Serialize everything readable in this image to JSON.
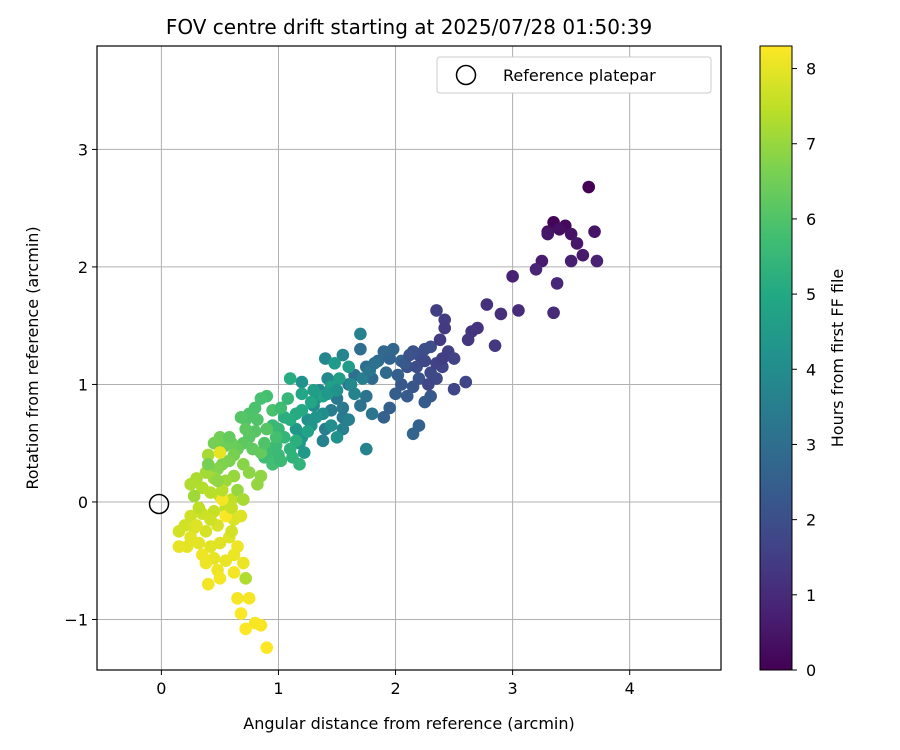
{
  "chart_data": {
    "type": "scatter",
    "title": "FOV centre drift starting at 2025/07/28 01:50:39",
    "xlabel": "Angular distance from reference (arcmin)",
    "ylabel": "Rotation from reference (arcmin)",
    "xlim": [
      -0.55,
      4.78
    ],
    "ylim": [
      -1.43,
      3.88
    ],
    "xticks": [
      0,
      1,
      2,
      3,
      4
    ],
    "yticks": [
      -1,
      0,
      1,
      2,
      3
    ],
    "xtick_labels": [
      "0",
      "1",
      "2",
      "3",
      "4"
    ],
    "ytick_labels": [
      "−1",
      "0",
      "1",
      "2",
      "3"
    ],
    "grid": true,
    "colormap": "viridis",
    "colorbar": {
      "label": "Hours from first FF file",
      "range": [
        0,
        8.3
      ],
      "ticks": [
        0,
        1,
        2,
        3,
        4,
        5,
        6,
        7,
        8
      ],
      "tick_labels": [
        "0",
        "1",
        "2",
        "3",
        "4",
        "5",
        "6",
        "7",
        "8"
      ]
    },
    "legend": {
      "position": "top-right",
      "entries": [
        "Reference platepar"
      ]
    },
    "reference_point": {
      "x": 0,
      "y": 0,
      "marker": "open-circle"
    },
    "series": [
      {
        "points": [
          [
            3.65,
            2.68,
            0.0
          ],
          [
            3.35,
            2.38,
            0.1
          ],
          [
            3.45,
            2.35,
            0.2
          ],
          [
            3.3,
            2.3,
            0.3
          ],
          [
            3.4,
            2.32,
            0.35
          ],
          [
            3.5,
            2.28,
            0.4
          ],
          [
            3.7,
            2.3,
            0.45
          ],
          [
            3.3,
            2.28,
            0.5
          ],
          [
            3.55,
            2.2,
            0.55
          ],
          [
            3.6,
            2.1,
            0.6
          ],
          [
            3.25,
            2.05,
            0.65
          ],
          [
            3.5,
            2.05,
            0.7
          ],
          [
            3.72,
            2.05,
            0.75
          ],
          [
            3.0,
            1.92,
            0.8
          ],
          [
            3.2,
            1.98,
            0.85
          ],
          [
            3.38,
            1.86,
            0.9
          ],
          [
            3.35,
            1.61,
            1.0
          ],
          [
            3.05,
            1.63,
            1.05
          ],
          [
            2.9,
            1.6,
            1.1
          ],
          [
            2.78,
            1.68,
            1.15
          ],
          [
            2.7,
            1.48,
            1.2
          ],
          [
            2.65,
            1.45,
            1.25
          ],
          [
            2.62,
            1.38,
            1.3
          ],
          [
            2.85,
            1.33,
            1.35
          ],
          [
            2.42,
            1.48,
            1.4
          ],
          [
            2.42,
            1.55,
            1.45
          ],
          [
            2.35,
            1.63,
            1.5
          ],
          [
            2.45,
            1.28,
            1.55
          ],
          [
            2.5,
            1.22,
            1.6
          ],
          [
            2.4,
            1.15,
            1.65
          ],
          [
            2.6,
            1.02,
            1.7
          ],
          [
            2.5,
            0.96,
            1.75
          ],
          [
            2.35,
            1.05,
            1.8
          ],
          [
            2.3,
            1.1,
            1.85
          ],
          [
            2.2,
            1.25,
            1.9
          ],
          [
            2.25,
            1.3,
            1.95
          ],
          [
            2.3,
            1.32,
            2.0
          ],
          [
            2.15,
            1.28,
            2.05
          ],
          [
            2.1,
            1.15,
            2.1
          ],
          [
            2.2,
            1.05,
            2.15
          ],
          [
            2.15,
            0.98,
            2.2
          ],
          [
            2.05,
            1.0,
            2.25
          ],
          [
            2.3,
            0.9,
            2.3
          ],
          [
            2.25,
            0.85,
            2.35
          ],
          [
            2.1,
            0.9,
            2.4
          ],
          [
            2.0,
            0.92,
            2.45
          ],
          [
            1.95,
            0.8,
            2.5
          ],
          [
            1.9,
            0.72,
            2.55
          ],
          [
            2.2,
            0.65,
            2.6
          ],
          [
            2.15,
            0.58,
            2.65
          ],
          [
            2.05,
            1.2,
            2.7
          ],
          [
            1.98,
            1.3,
            2.75
          ],
          [
            1.9,
            1.28,
            2.8
          ],
          [
            1.85,
            1.2,
            2.85
          ],
          [
            1.8,
            1.05,
            2.9
          ],
          [
            1.75,
            1.15,
            2.95
          ],
          [
            1.7,
            1.3,
            3.0
          ],
          [
            1.65,
            1.08,
            3.05
          ],
          [
            1.6,
            1.0,
            3.1
          ],
          [
            1.75,
            0.9,
            3.15
          ],
          [
            1.7,
            0.82,
            3.2
          ],
          [
            1.8,
            0.75,
            3.25
          ],
          [
            1.5,
            0.88,
            3.3
          ],
          [
            1.55,
            0.8,
            3.35
          ],
          [
            1.55,
            0.72,
            3.4
          ],
          [
            1.45,
            0.78,
            3.45
          ],
          [
            1.4,
            0.62,
            3.5
          ],
          [
            1.55,
            0.62,
            3.55
          ],
          [
            1.38,
            0.52,
            3.6
          ],
          [
            1.75,
            0.45,
            3.65
          ],
          [
            1.7,
            1.43,
            3.7
          ],
          [
            1.55,
            1.25,
            3.75
          ],
          [
            1.4,
            1.22,
            3.8
          ],
          [
            1.42,
            1.05,
            3.85
          ],
          [
            1.35,
            0.95,
            3.9
          ],
          [
            1.32,
            0.88,
            3.95
          ],
          [
            1.3,
            0.82,
            4.0
          ],
          [
            1.38,
            0.75,
            4.05
          ],
          [
            1.25,
            0.7,
            4.1
          ],
          [
            1.5,
            0.55,
            4.15
          ],
          [
            1.2,
            1.02,
            4.2
          ],
          [
            1.28,
            0.65,
            4.25
          ],
          [
            1.2,
            0.55,
            4.3
          ],
          [
            1.15,
            0.62,
            4.35
          ],
          [
            1.18,
            0.5,
            4.4
          ],
          [
            1.22,
            0.42,
            4.45
          ],
          [
            1.48,
            1.18,
            4.5
          ],
          [
            1.6,
            1.15,
            4.55
          ],
          [
            1.52,
            1.05,
            4.6
          ],
          [
            1.45,
            0.98,
            4.7
          ],
          [
            1.38,
            0.9,
            4.8
          ],
          [
            1.28,
            0.85,
            4.9
          ],
          [
            1.2,
            0.78,
            5.0
          ],
          [
            1.15,
            0.75,
            5.05
          ],
          [
            1.1,
            1.05,
            5.1
          ],
          [
            1.1,
            0.7,
            5.15
          ],
          [
            1.05,
            0.72,
            5.2
          ],
          [
            1.15,
            0.52,
            5.25
          ],
          [
            1.1,
            0.45,
            5.3
          ],
          [
            1.12,
            0.38,
            5.35
          ],
          [
            1.18,
            0.32,
            5.4
          ],
          [
            1.05,
            0.55,
            5.45
          ],
          [
            1.0,
            0.62,
            5.5
          ],
          [
            0.95,
            0.65,
            5.55
          ],
          [
            0.98,
            0.48,
            5.6
          ],
          [
            0.92,
            0.42,
            5.65
          ],
          [
            0.88,
            0.38,
            5.7
          ],
          [
            0.95,
            0.32,
            5.75
          ],
          [
            0.9,
            0.9,
            5.8
          ],
          [
            0.85,
            0.88,
            5.85
          ],
          [
            0.8,
            0.8,
            5.9
          ],
          [
            0.75,
            0.75,
            5.95
          ],
          [
            0.72,
            0.7,
            6.0
          ],
          [
            0.68,
            0.72,
            6.05
          ],
          [
            0.8,
            0.6,
            6.1
          ],
          [
            0.75,
            0.55,
            6.15
          ],
          [
            0.7,
            0.5,
            6.2
          ],
          [
            0.78,
            0.45,
            6.25
          ],
          [
            0.85,
            0.42,
            6.3
          ],
          [
            0.65,
            0.45,
            6.35
          ],
          [
            0.6,
            0.5,
            6.4
          ],
          [
            0.55,
            0.48,
            6.45
          ],
          [
            0.5,
            0.55,
            6.5
          ],
          [
            0.45,
            0.5,
            6.55
          ],
          [
            0.62,
            0.4,
            6.6
          ],
          [
            0.58,
            0.35,
            6.65
          ],
          [
            0.52,
            0.32,
            6.7
          ],
          [
            0.48,
            0.28,
            6.75
          ],
          [
            0.7,
            0.32,
            6.8
          ],
          [
            0.75,
            0.25,
            6.85
          ],
          [
            0.85,
            0.22,
            6.9
          ],
          [
            0.82,
            0.15,
            6.95
          ],
          [
            0.62,
            0.22,
            7.0
          ],
          [
            0.55,
            0.18,
            7.05
          ],
          [
            0.45,
            0.2,
            7.1
          ],
          [
            0.38,
            0.25,
            7.15
          ],
          [
            0.4,
            0.4,
            7.2
          ],
          [
            0.3,
            0.2,
            7.25
          ],
          [
            0.25,
            0.15,
            7.3
          ],
          [
            0.35,
            0.12,
            7.35
          ],
          [
            0.42,
            0.08,
            7.4
          ],
          [
            0.5,
            0.05,
            7.45
          ],
          [
            0.6,
            0.02,
            7.5
          ],
          [
            0.55,
            -0.05,
            7.55
          ],
          [
            0.45,
            -0.08,
            7.6
          ],
          [
            0.35,
            -0.1,
            7.65
          ],
          [
            0.25,
            -0.12,
            7.7
          ],
          [
            0.2,
            -0.2,
            7.72
          ],
          [
            0.15,
            -0.25,
            7.75
          ],
          [
            0.28,
            -0.22,
            7.78
          ],
          [
            0.38,
            -0.25,
            7.8
          ],
          [
            0.48,
            -0.2,
            7.82
          ],
          [
            0.62,
            -0.15,
            7.85
          ],
          [
            0.68,
            -0.12,
            7.88
          ],
          [
            0.58,
            -0.3,
            7.9
          ],
          [
            0.5,
            -0.35,
            7.92
          ],
          [
            0.42,
            -0.38,
            7.94
          ],
          [
            0.32,
            -0.35,
            7.96
          ],
          [
            0.22,
            -0.38,
            7.98
          ],
          [
            0.15,
            -0.38,
            8.0
          ],
          [
            0.45,
            -0.48,
            8.02
          ],
          [
            0.55,
            -0.5,
            8.04
          ],
          [
            0.62,
            -0.45,
            8.06
          ],
          [
            0.7,
            -0.52,
            8.08
          ],
          [
            0.38,
            -0.52,
            8.1
          ],
          [
            0.48,
            -0.58,
            8.12
          ],
          [
            0.4,
            -0.7,
            8.14
          ],
          [
            0.5,
            -0.65,
            8.16
          ],
          [
            0.65,
            -0.82,
            8.18
          ],
          [
            0.75,
            -0.82,
            8.2
          ],
          [
            0.8,
            -1.03,
            8.22
          ],
          [
            0.85,
            -1.05,
            8.24
          ],
          [
            0.68,
            -0.95,
            8.26
          ],
          [
            0.72,
            -1.08,
            8.28
          ],
          [
            0.9,
            -1.24,
            8.3
          ],
          [
            0.5,
            0.42,
            8.0
          ],
          [
            0.52,
            0.02,
            8.2
          ],
          [
            0.55,
            -0.12,
            8.25
          ],
          [
            0.65,
            -0.38,
            8.1
          ],
          [
            0.72,
            -0.65,
            7.3
          ],
          [
            0.6,
            -0.05,
            7.6
          ],
          [
            0.52,
            0.1,
            7.4
          ],
          [
            0.28,
            0.05,
            7.1
          ],
          [
            0.32,
            -0.05,
            7.5
          ],
          [
            0.42,
            -0.15,
            7.7
          ],
          [
            0.48,
            0.18,
            6.9
          ],
          [
            0.65,
            0.1,
            7.0
          ],
          [
            0.7,
            0.02,
            7.2
          ],
          [
            0.4,
            0.32,
            6.6
          ],
          [
            0.58,
            0.55,
            6.3
          ],
          [
            0.72,
            0.62,
            6.2
          ],
          [
            0.82,
            0.7,
            6.0
          ],
          [
            0.95,
            0.78,
            5.9
          ],
          [
            1.02,
            0.8,
            5.7
          ],
          [
            1.08,
            0.88,
            5.5
          ],
          [
            1.2,
            0.92,
            4.9
          ],
          [
            1.3,
            0.95,
            4.6
          ],
          [
            1.42,
            0.92,
            4.4
          ],
          [
            1.5,
            0.95,
            4.2
          ],
          [
            1.62,
            1.0,
            3.9
          ],
          [
            1.65,
            0.92,
            3.7
          ],
          [
            1.72,
            1.05,
            3.5
          ],
          [
            1.78,
            1.12,
            3.3
          ],
          [
            1.82,
            1.18,
            3.1
          ],
          [
            1.92,
            1.1,
            2.9
          ],
          [
            1.95,
            1.22,
            2.7
          ],
          [
            2.02,
            1.08,
            2.5
          ],
          [
            2.08,
            1.18,
            2.3
          ],
          [
            2.12,
            1.25,
            2.1
          ],
          [
            2.18,
            1.15,
            1.95
          ],
          [
            2.25,
            1.2,
            1.8
          ],
          [
            2.28,
            1.0,
            1.75
          ],
          [
            2.35,
            1.18,
            1.6
          ],
          [
            2.4,
            1.22,
            1.5
          ],
          [
            2.38,
            1.38,
            1.45
          ],
          [
            1.6,
            0.7,
            3.6
          ],
          [
            1.45,
            0.65,
            4.1
          ],
          [
            1.32,
            0.72,
            4.3
          ],
          [
            1.25,
            0.6,
            4.8
          ],
          [
            0.98,
            0.55,
            5.8
          ],
          [
            0.88,
            0.5,
            6.0
          ],
          [
            0.9,
            0.62,
            6.1
          ],
          [
            1.0,
            0.4,
            5.6
          ],
          [
            1.02,
            0.35,
            5.6
          ],
          [
            0.3,
            -0.2,
            7.9
          ],
          [
            0.25,
            -0.3,
            7.95
          ],
          [
            0.35,
            -0.45,
            8.1
          ],
          [
            0.6,
            -0.25,
            7.75
          ],
          [
            0.62,
            -0.6,
            8.2
          ]
        ]
      }
    ]
  }
}
